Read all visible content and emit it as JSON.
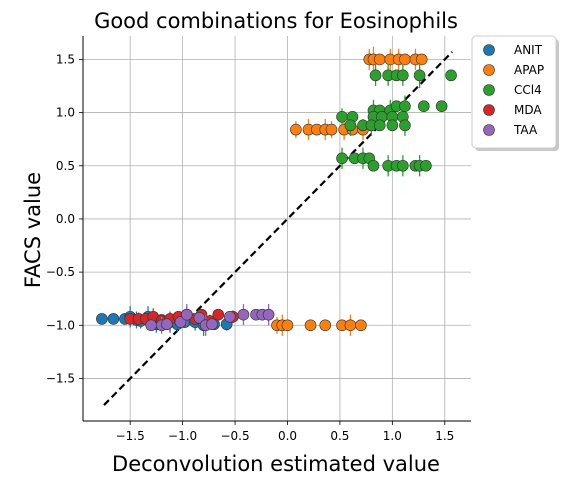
{
  "chart_data": {
    "type": "scatter",
    "title": "Good combinations for Eosinophils",
    "xlabel": "Deconvolution estimated value",
    "ylabel": "FACS value",
    "xlim": [
      -1.95,
      1.75
    ],
    "ylim": [
      -1.9,
      1.72
    ],
    "xticks": [
      -1.5,
      -1.0,
      -0.5,
      0.0,
      0.5,
      1.0,
      1.5
    ],
    "xtick_labels": [
      "−1.5",
      "−1.0",
      "−0.5",
      "0.0",
      "0.5",
      "1.0",
      "1.5"
    ],
    "yticks": [
      -1.5,
      -1.0,
      -0.5,
      0.0,
      0.5,
      1.0,
      1.5
    ],
    "ytick_labels": [
      "−1.5",
      "−1.0",
      "−0.5",
      "0.0",
      "0.5",
      "1.0",
      "1.5"
    ],
    "grid": true,
    "legend_position": "outside-top-right",
    "identity_line": {
      "x": [
        -1.75,
        1.57
      ],
      "y": [
        -1.75,
        1.57
      ],
      "style": "dashed",
      "color": "#000000"
    },
    "series": [
      {
        "name": "ANIT",
        "color": "#1f77b4",
        "points": [
          [
            -1.77,
            -0.94,
            0.0
          ],
          [
            -1.66,
            -0.94,
            0.0
          ],
          [
            -1.55,
            -0.94,
            0.0
          ],
          [
            -1.5,
            -0.92,
            0.1
          ],
          [
            -1.44,
            -0.95,
            0.08
          ],
          [
            -1.4,
            -0.96,
            0.07
          ],
          [
            -1.33,
            -0.92,
            0.1
          ],
          [
            -1.25,
            -0.99,
            0.08
          ],
          [
            -1.2,
            -0.95,
            0.0
          ],
          [
            -1.12,
            -0.97,
            0.1
          ],
          [
            -1.05,
            -0.99,
            0.07
          ],
          [
            -0.98,
            -0.97,
            0.0
          ],
          [
            -0.88,
            -0.97,
            0.08
          ],
          [
            -0.8,
            -1.0,
            0.1
          ],
          [
            -0.7,
            -0.99,
            0.0
          ],
          [
            -0.58,
            -0.99,
            0.06
          ]
        ]
      },
      {
        "name": "APAP",
        "color": "#ff7f0e",
        "points": [
          [
            0.78,
            1.5,
            0.1
          ],
          [
            0.82,
            1.5,
            0.12
          ],
          [
            0.88,
            1.5,
            0.0
          ],
          [
            0.98,
            1.5,
            0.1
          ],
          [
            1.06,
            1.5,
            0.1
          ],
          [
            1.12,
            1.5,
            0.0
          ],
          [
            1.22,
            1.5,
            0.1
          ],
          [
            1.28,
            1.5,
            0.0
          ],
          [
            0.08,
            0.84,
            0.08
          ],
          [
            0.2,
            0.84,
            0.1
          ],
          [
            0.28,
            0.84,
            0.0
          ],
          [
            0.36,
            0.84,
            0.1
          ],
          [
            0.42,
            0.84,
            0.08
          ],
          [
            0.54,
            0.84,
            0.1
          ],
          [
            0.62,
            0.84,
            0.0
          ],
          [
            0.72,
            0.84,
            0.1
          ],
          [
            -0.1,
            -1.0,
            0.08
          ],
          [
            -0.05,
            -1.0,
            0.1
          ],
          [
            0.0,
            -1.0,
            0.0
          ],
          [
            0.22,
            -1.0,
            0.0
          ],
          [
            0.36,
            -1.0,
            0.0
          ],
          [
            0.52,
            -1.0,
            0.0
          ],
          [
            0.6,
            -1.0,
            0.1
          ],
          [
            0.7,
            -1.0,
            0.0
          ]
        ]
      },
      {
        "name": "CCl4",
        "color": "#2ca02c",
        "points": [
          [
            0.84,
            1.35,
            0.1
          ],
          [
            0.96,
            1.35,
            0.1
          ],
          [
            1.04,
            1.35,
            0.0
          ],
          [
            1.1,
            1.35,
            0.1
          ],
          [
            1.26,
            1.35,
            0.12
          ],
          [
            1.56,
            1.35,
            0.0
          ],
          [
            0.82,
            1.02,
            0.1
          ],
          [
            0.88,
            1.02,
            0.0
          ],
          [
            0.98,
            1.02,
            0.1
          ],
          [
            1.04,
            1.06,
            0.0
          ],
          [
            1.12,
            1.06,
            0.1
          ],
          [
            1.3,
            1.06,
            0.0
          ],
          [
            1.47,
            1.06,
            0.0
          ],
          [
            0.52,
            0.96,
            0.08
          ],
          [
            0.62,
            0.96,
            0.0
          ],
          [
            0.82,
            0.96,
            0.1
          ],
          [
            0.9,
            0.96,
            0.0
          ],
          [
            1.0,
            0.96,
            0.1
          ],
          [
            1.1,
            0.96,
            0.0
          ],
          [
            0.6,
            0.88,
            0.1
          ],
          [
            0.72,
            0.88,
            0.0
          ],
          [
            0.8,
            0.88,
            0.1
          ],
          [
            0.88,
            0.88,
            0.0
          ],
          [
            1.0,
            0.88,
            0.0
          ],
          [
            1.12,
            0.88,
            0.1
          ],
          [
            0.52,
            0.57,
            0.1
          ],
          [
            0.64,
            0.57,
            0.0
          ],
          [
            0.72,
            0.57,
            0.1
          ],
          [
            0.78,
            0.57,
            0.0
          ],
          [
            0.82,
            0.5,
            0.0
          ],
          [
            0.96,
            0.5,
            0.1
          ],
          [
            1.04,
            0.5,
            0.0
          ],
          [
            1.1,
            0.5,
            0.1
          ],
          [
            1.22,
            0.5,
            0.0
          ],
          [
            1.26,
            0.5,
            0.1
          ],
          [
            1.32,
            0.5,
            0.0
          ]
        ]
      },
      {
        "name": "MDA",
        "color": "#d62728",
        "points": [
          [
            -1.5,
            -0.94,
            0.0
          ],
          [
            -1.42,
            -0.94,
            0.06
          ],
          [
            -1.35,
            -0.94,
            0.0
          ],
          [
            -1.28,
            -0.92,
            0.08
          ],
          [
            -1.2,
            -0.96,
            0.0
          ],
          [
            -1.12,
            -0.94,
            0.06
          ],
          [
            -1.04,
            -0.92,
            0.0
          ],
          [
            -0.96,
            -0.9,
            0.08
          ],
          [
            -0.88,
            -0.94,
            0.0
          ],
          [
            -0.82,
            -0.9,
            0.0
          ],
          [
            -0.74,
            -0.96,
            0.06
          ],
          [
            -0.66,
            -0.9,
            0.0
          ],
          [
            -0.52,
            -0.92,
            0.06
          ]
        ]
      },
      {
        "name": "TAA",
        "color": "#9467bd",
        "points": [
          [
            -1.3,
            -1.0,
            0.0
          ],
          [
            -1.2,
            -1.0,
            0.08
          ],
          [
            -1.15,
            -0.99,
            0.0
          ],
          [
            -1.02,
            -0.97,
            0.0
          ],
          [
            -0.96,
            -0.9,
            0.1
          ],
          [
            -0.84,
            -0.93,
            0.0
          ],
          [
            -0.78,
            -1.0,
            0.1
          ],
          [
            -0.72,
            -0.99,
            0.0
          ],
          [
            -0.55,
            -0.92,
            0.0
          ],
          [
            -0.42,
            -0.9,
            0.1
          ],
          [
            -0.3,
            -0.9,
            0.0
          ],
          [
            -0.24,
            -0.9,
            0.0
          ],
          [
            -0.18,
            -0.9,
            0.1
          ]
        ]
      }
    ]
  }
}
